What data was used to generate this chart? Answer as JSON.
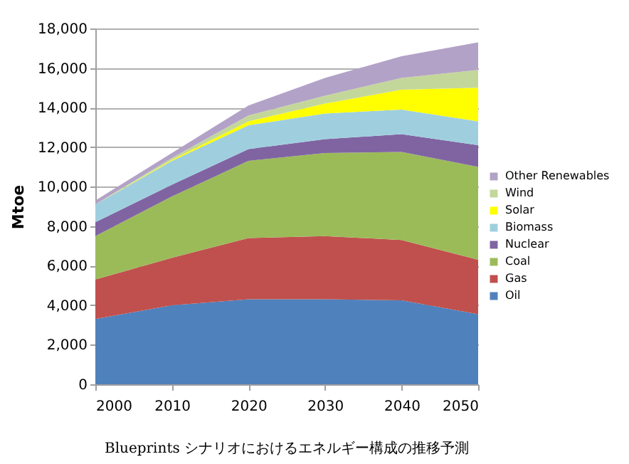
{
  "chart_data": {
    "type": "area",
    "stacked": true,
    "ylabel": "Mtoe",
    "x": [
      2000,
      2010,
      2020,
      2030,
      2040,
      2050
    ],
    "xlim": [
      2000,
      2050
    ],
    "xticks": [
      2000,
      2010,
      2020,
      2030,
      2040,
      2050
    ],
    "ylim": [
      0,
      18000
    ],
    "yticks": [
      0,
      {
        "value": 2000,
        "label": "2,000"
      },
      {
        "value": 4000,
        "label": "4,000"
      },
      {
        "value": 6000,
        "label": "6,000"
      },
      {
        "value": 8000,
        "label": "8,000"
      },
      {
        "value": 10000,
        "label": "10,000"
      },
      {
        "value": 12000,
        "label": "12,000"
      },
      {
        "value": 14000,
        "label": "14,000"
      },
      {
        "value": 16000,
        "label": "16,000"
      },
      {
        "value": 18000,
        "label": "18,000"
      }
    ],
    "grid": "y",
    "legend": "right",
    "annotations": [
      "Blueprints シナリオにおけるエネルギー構成の推移予測"
    ],
    "series": [
      {
        "name": "Oil",
        "color": "#4f81bd",
        "values": [
          3300,
          4000,
          4300,
          4300,
          4250,
          3550
        ]
      },
      {
        "name": "Gas",
        "color": "#c0504d",
        "values": [
          2000,
          2400,
          3100,
          3200,
          3050,
          2750
        ]
      },
      {
        "name": "Coal",
        "color": "#9bbb59",
        "values": [
          2200,
          3100,
          3900,
          4200,
          4450,
          4700
        ]
      },
      {
        "name": "Nuclear",
        "color": "#8064a2",
        "values": [
          700,
          600,
          600,
          700,
          900,
          1100
        ]
      },
      {
        "name": "Biomass",
        "color": "#9fcfdf",
        "values": [
          900,
          1200,
          1200,
          1300,
          1250,
          1200
        ]
      },
      {
        "name": "Solar",
        "color": "#ffff00",
        "values": [
          0,
          50,
          200,
          500,
          1000,
          1700
        ]
      },
      {
        "name": "Wind",
        "color": "#c4d79b",
        "values": [
          0,
          100,
          300,
          400,
          600,
          900
        ]
      },
      {
        "name": "Other Renewables",
        "color": "#b3a2c7",
        "values": [
          200,
          250,
          500,
          900,
          1100,
          1400
        ]
      }
    ]
  }
}
